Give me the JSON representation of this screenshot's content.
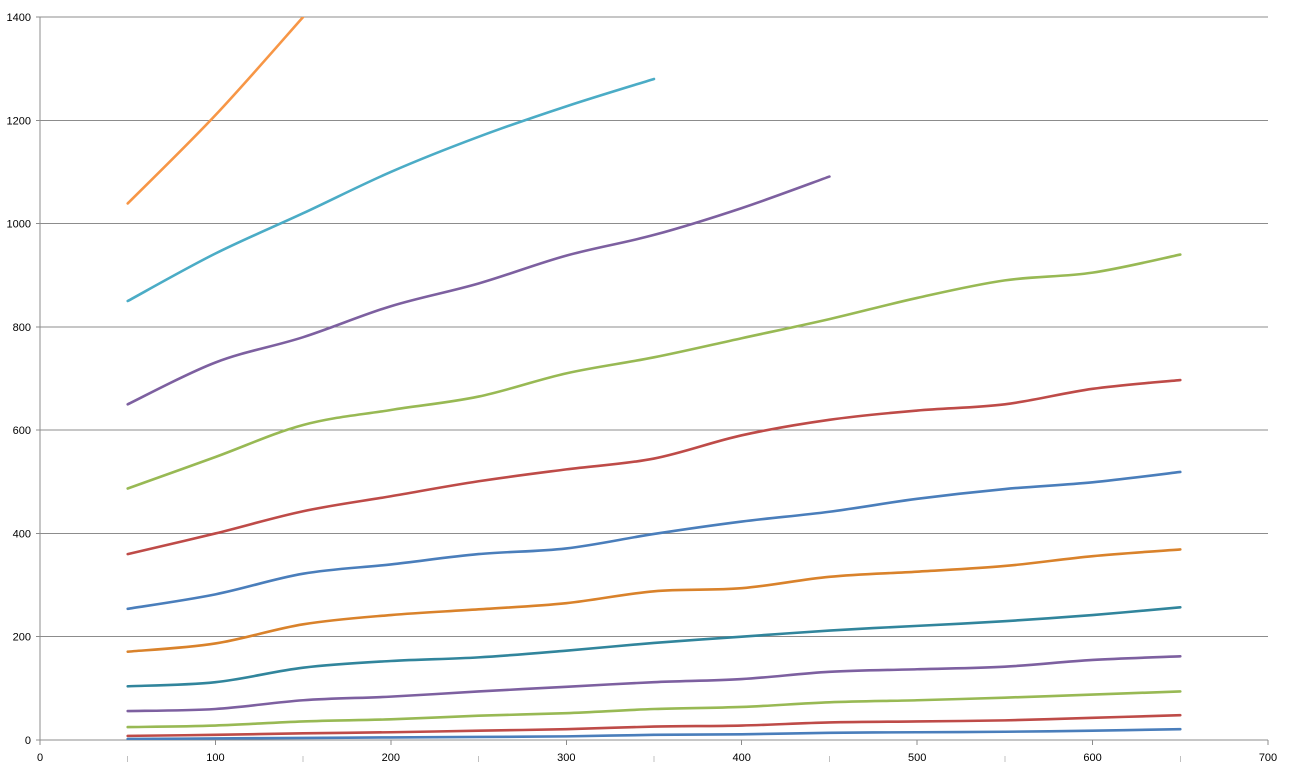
{
  "chart_data": {
    "type": "line",
    "title": "",
    "xlabel": "",
    "ylabel": "",
    "xlim": [
      0,
      700
    ],
    "ylim": [
      0,
      1400
    ],
    "x_ticks": [
      "0",
      "100",
      "200",
      "300",
      "400",
      "500",
      "600",
      "700"
    ],
    "y_ticks": [
      "0",
      "200",
      "400",
      "600",
      "800",
      "1000",
      "1200",
      "1400"
    ],
    "x_tick_values": [
      0,
      100,
      200,
      300,
      400,
      500,
      600,
      700
    ],
    "y_tick_values": [
      0,
      200,
      400,
      600,
      800,
      1000,
      1200,
      1400
    ],
    "grid": "horizontal",
    "legend": "none",
    "series": [
      {
        "color": "#4a7ebb",
        "x": [
          50,
          100,
          150,
          200,
          250,
          300,
          350,
          400,
          450,
          500,
          550,
          600,
          650
        ],
        "y": [
          2,
          3,
          4,
          5,
          6,
          7,
          10,
          11,
          14,
          15,
          16,
          18,
          21
        ]
      },
      {
        "color": "#be4b48",
        "x": [
          50,
          100,
          150,
          200,
          250,
          300,
          350,
          400,
          450,
          500,
          550,
          600,
          650
        ],
        "y": [
          8,
          10,
          13,
          15,
          18,
          21,
          26,
          28,
          34,
          36,
          38,
          43,
          48
        ]
      },
      {
        "color": "#98b954",
        "x": [
          50,
          100,
          150,
          200,
          250,
          300,
          350,
          400,
          450,
          500,
          550,
          600,
          650
        ],
        "y": [
          25,
          28,
          36,
          40,
          47,
          52,
          60,
          64,
          73,
          77,
          82,
          88,
          94
        ]
      },
      {
        "color": "#7d60a0",
        "x": [
          50,
          100,
          150,
          200,
          250,
          300,
          350,
          400,
          450,
          500,
          550,
          600,
          650
        ],
        "y": [
          56,
          60,
          77,
          84,
          94,
          103,
          112,
          118,
          132,
          137,
          142,
          155,
          162
        ]
      },
      {
        "color": "#31859c",
        "x": [
          50,
          100,
          150,
          200,
          250,
          300,
          350,
          400,
          450,
          500,
          550,
          600,
          650
        ],
        "y": [
          104,
          112,
          140,
          153,
          160,
          173,
          188,
          200,
          212,
          221,
          230,
          242,
          257
        ]
      },
      {
        "color": "#d9822b",
        "x": [
          50,
          100,
          150,
          200,
          250,
          300,
          350,
          400,
          450,
          500,
          550,
          600,
          650
        ],
        "y": [
          171,
          187,
          224,
          242,
          253,
          265,
          288,
          294,
          316,
          326,
          337,
          356,
          369
        ]
      },
      {
        "color": "#4a7ebb",
        "x": [
          50,
          100,
          150,
          200,
          250,
          300,
          350,
          400,
          450,
          500,
          550,
          600,
          650
        ],
        "y": [
          254,
          282,
          322,
          340,
          360,
          371,
          399,
          423,
          442,
          467,
          486,
          499,
          519
        ]
      },
      {
        "color": "#be4b48",
        "x": [
          50,
          100,
          150,
          200,
          250,
          300,
          350,
          400,
          450,
          500,
          550,
          600,
          650
        ],
        "y": [
          360,
          400,
          443,
          472,
          501,
          524,
          545,
          590,
          620,
          638,
          650,
          680,
          697
        ]
      },
      {
        "color": "#98b954",
        "x": [
          50,
          100,
          150,
          200,
          250,
          300,
          350,
          400,
          450,
          500,
          550,
          600,
          650
        ],
        "y": [
          487,
          548,
          610,
          639,
          665,
          710,
          741,
          778,
          815,
          856,
          890,
          905,
          940
        ]
      },
      {
        "color": "#7d60a0",
        "x": [
          50,
          100,
          150,
          200,
          250,
          300,
          350,
          400,
          450
        ],
        "y": [
          650,
          731,
          780,
          840,
          884,
          938,
          978,
          1030,
          1091
        ]
      },
      {
        "color": "#4bacc6",
        "x": [
          50,
          100,
          150,
          200,
          250,
          300,
          350
        ],
        "y": [
          850,
          942,
          1020,
          1100,
          1168,
          1227,
          1280
        ]
      },
      {
        "color": "#f79646",
        "x": [
          50,
          100,
          150
        ],
        "y": [
          1039,
          1210,
          1400
        ]
      }
    ]
  }
}
